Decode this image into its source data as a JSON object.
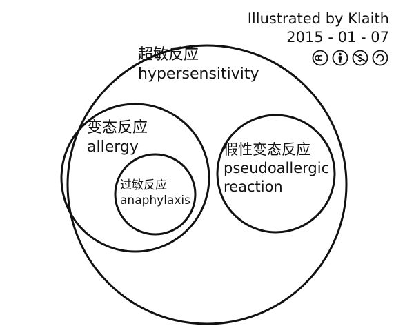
{
  "credit": {
    "author": "Illustrated by Klaith",
    "date": "2015 - 01 - 07"
  },
  "license_icons": [
    "cc-icon",
    "attribution-icon",
    "noncommercial-icon",
    "sharealike-icon"
  ],
  "sets": {
    "hypersensitivity": {
      "zh": "超敏反应",
      "en": "hypersensitivity"
    },
    "allergy": {
      "zh": "变态反应",
      "en": "allergy"
    },
    "pseudoallergic": {
      "zh": "假性变态反应",
      "en_lines": [
        "pseudoallergic",
        "reaction"
      ]
    },
    "anaphylaxis": {
      "zh": "过敏反应",
      "en": "anaphylaxis"
    }
  },
  "colors": {
    "stroke": "#111111",
    "background": "#ffffff"
  }
}
